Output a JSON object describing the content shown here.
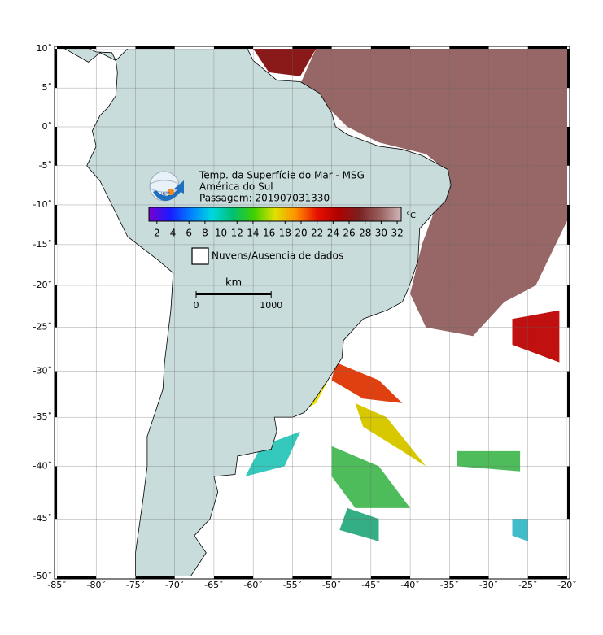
{
  "map": {
    "title_lines": [
      "Temp. da Superfície do Mar - MSG",
      "América do Sul",
      "Passagem: 201907031330"
    ],
    "logo_text": "INPE",
    "colorbar": {
      "unit": "°C",
      "range": [
        1,
        32.5
      ],
      "ticks": [
        2,
        4,
        6,
        8,
        10,
        12,
        14,
        16,
        18,
        20,
        22,
        24,
        26,
        28,
        30,
        32
      ],
      "colors": [
        "#7a00d0",
        "#1a1aff",
        "#0080ff",
        "#00d8e0",
        "#00c070",
        "#40d000",
        "#e0e000",
        "#ff9000",
        "#e81000",
        "#b00000",
        "#7a2020",
        "#9a6060",
        "#d0b8b8"
      ]
    },
    "legend": "Nuvens/Ausencia de dados",
    "scale": {
      "unit": "km",
      "ticks": [
        0,
        1000
      ]
    },
    "xlim": [
      -85,
      -20
    ],
    "ylim": [
      -50,
      10
    ],
    "xticks": [
      {
        "value": -85,
        "label": "-85˚"
      },
      {
        "value": -80,
        "label": "-80˚"
      },
      {
        "value": -75,
        "label": "-75˚"
      },
      {
        "value": -70,
        "label": "-70˚"
      },
      {
        "value": -65,
        "label": "-65˚"
      },
      {
        "value": -60,
        "label": "-60˚"
      },
      {
        "value": -55,
        "label": "-55˚"
      },
      {
        "value": -50,
        "label": "-50˚"
      },
      {
        "value": -45,
        "label": "-45˚"
      },
      {
        "value": -40,
        "label": "-40˚"
      },
      {
        "value": -35,
        "label": "-35˚"
      },
      {
        "value": -30,
        "label": "-30˚"
      },
      {
        "value": -25,
        "label": "-25˚"
      },
      {
        "value": -20,
        "label": "-20˚"
      }
    ],
    "yticks": [
      {
        "value": 10,
        "label": "10˚"
      },
      {
        "value": 5,
        "label": "5˚"
      },
      {
        "value": 0,
        "label": "0˚"
      },
      {
        "value": -5,
        "label": "-5˚"
      },
      {
        "value": -10,
        "label": "-10˚"
      },
      {
        "value": -15,
        "label": "-15˚"
      },
      {
        "value": -20,
        "label": "-20˚"
      },
      {
        "value": -25,
        "label": "-25˚"
      },
      {
        "value": -30,
        "label": "-30˚"
      },
      {
        "value": -35,
        "label": "-35˚"
      },
      {
        "value": -40,
        "label": "-40˚"
      },
      {
        "value": -45,
        "label": "-45˚"
      },
      {
        "value": -50,
        "label": "-50˚"
      }
    ]
  }
}
